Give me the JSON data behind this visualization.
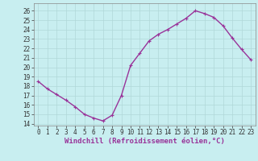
{
  "x": [
    0,
    1,
    2,
    3,
    4,
    5,
    6,
    7,
    8,
    9,
    10,
    11,
    12,
    13,
    14,
    15,
    16,
    17,
    18,
    19,
    20,
    21,
    22,
    23
  ],
  "y": [
    18.5,
    17.7,
    17.1,
    16.5,
    15.8,
    15.0,
    14.6,
    14.3,
    14.9,
    17.0,
    20.2,
    21.5,
    22.8,
    23.5,
    24.0,
    24.6,
    25.2,
    26.0,
    25.7,
    25.3,
    24.4,
    23.1,
    21.9,
    20.8
  ],
  "line_color": "#993399",
  "marker": "+",
  "bg_color": "#c8eef0",
  "grid_color": "#b0d8d8",
  "xlabel": "Windchill (Refroidissement éolien,°C)",
  "xlim": [
    -0.5,
    23.5
  ],
  "ylim": [
    13.8,
    26.8
  ],
  "yticks": [
    14,
    15,
    16,
    17,
    18,
    19,
    20,
    21,
    22,
    23,
    24,
    25,
    26
  ],
  "xticks": [
    0,
    1,
    2,
    3,
    4,
    5,
    6,
    7,
    8,
    9,
    10,
    11,
    12,
    13,
    14,
    15,
    16,
    17,
    18,
    19,
    20,
    21,
    22,
    23
  ],
  "xlabel_fontsize": 6.5,
  "tick_fontsize": 5.5,
  "line_width": 1.0,
  "marker_size": 3.5,
  "marker_edge_width": 0.8
}
